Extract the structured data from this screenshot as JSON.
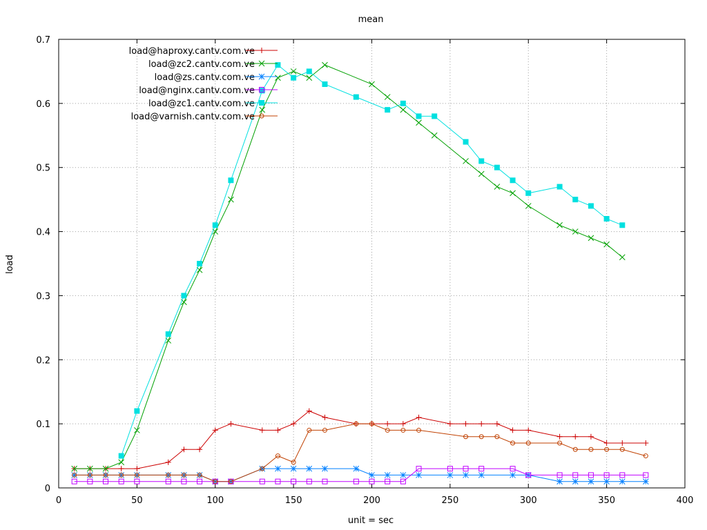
{
  "chart_data": {
    "type": "line",
    "title": "mean",
    "xlabel": "unit = sec",
    "ylabel": "load",
    "xlim": [
      0,
      400
    ],
    "ylim": [
      0,
      0.7
    ],
    "xticks": [
      0,
      50,
      100,
      150,
      200,
      250,
      300,
      350,
      400
    ],
    "yticks": [
      0,
      0.1,
      0.2,
      0.3,
      0.4,
      0.5,
      0.6,
      0.7
    ],
    "xtick_labels": [
      "0",
      "50",
      "100",
      "150",
      "200",
      "250",
      "300",
      "350",
      "400"
    ],
    "ytick_labels": [
      "0",
      "0.1",
      "0.2",
      "0.3",
      "0.4",
      "0.5",
      "0.6",
      "0.7"
    ],
    "grid": true,
    "legend_position": "top-left",
    "series": [
      {
        "name": "load@haproxy.cantv.com.ve",
        "color": "#cc0000",
        "marker": "plus",
        "points": [
          [
            10,
            0.03
          ],
          [
            20,
            0.03
          ],
          [
            30,
            0.03
          ],
          [
            40,
            0.03
          ],
          [
            50,
            0.03
          ],
          [
            70,
            0.04
          ],
          [
            80,
            0.06
          ],
          [
            90,
            0.06
          ],
          [
            100,
            0.09
          ],
          [
            110,
            0.1
          ],
          [
            130,
            0.09
          ],
          [
            140,
            0.09
          ],
          [
            150,
            0.1
          ],
          [
            160,
            0.12
          ],
          [
            170,
            0.11
          ],
          [
            190,
            0.1
          ],
          [
            200,
            0.1
          ],
          [
            210,
            0.1
          ],
          [
            220,
            0.1
          ],
          [
            230,
            0.11
          ],
          [
            250,
            0.1
          ],
          [
            260,
            0.1
          ],
          [
            270,
            0.1
          ],
          [
            280,
            0.1
          ],
          [
            290,
            0.09
          ],
          [
            300,
            0.09
          ],
          [
            320,
            0.08
          ],
          [
            330,
            0.08
          ],
          [
            340,
            0.08
          ],
          [
            350,
            0.07
          ],
          [
            360,
            0.07
          ],
          [
            375,
            0.07
          ]
        ]
      },
      {
        "name": "load@zc2.cantv.com.ve",
        "color": "#00a000",
        "marker": "cross",
        "points": [
          [
            10,
            0.03
          ],
          [
            20,
            0.03
          ],
          [
            30,
            0.03
          ],
          [
            40,
            0.04
          ],
          [
            50,
            0.09
          ],
          [
            70,
            0.23
          ],
          [
            80,
            0.29
          ],
          [
            90,
            0.34
          ],
          [
            100,
            0.4
          ],
          [
            110,
            0.45
          ],
          [
            130,
            0.59
          ],
          [
            140,
            0.64
          ],
          [
            150,
            0.65
          ],
          [
            160,
            0.64
          ],
          [
            170,
            0.66
          ],
          [
            200,
            0.63
          ],
          [
            210,
            0.61
          ],
          [
            220,
            0.59
          ],
          [
            230,
            0.57
          ],
          [
            240,
            0.55
          ],
          [
            260,
            0.51
          ],
          [
            270,
            0.49
          ],
          [
            280,
            0.47
          ],
          [
            290,
            0.46
          ],
          [
            300,
            0.44
          ],
          [
            320,
            0.41
          ],
          [
            330,
            0.4
          ],
          [
            340,
            0.39
          ],
          [
            350,
            0.38
          ],
          [
            360,
            0.36
          ]
        ]
      },
      {
        "name": "load@zs.cantv.com.ve",
        "color": "#0080ff",
        "marker": "star",
        "points": [
          [
            10,
            0.02
          ],
          [
            20,
            0.02
          ],
          [
            30,
            0.02
          ],
          [
            40,
            0.02
          ],
          [
            50,
            0.02
          ],
          [
            70,
            0.02
          ],
          [
            80,
            0.02
          ],
          [
            90,
            0.02
          ],
          [
            100,
            0.01
          ],
          [
            110,
            0.01
          ],
          [
            130,
            0.03
          ],
          [
            140,
            0.03
          ],
          [
            150,
            0.03
          ],
          [
            160,
            0.03
          ],
          [
            170,
            0.03
          ],
          [
            190,
            0.03
          ],
          [
            200,
            0.02
          ],
          [
            210,
            0.02
          ],
          [
            220,
            0.02
          ],
          [
            230,
            0.02
          ],
          [
            250,
            0.02
          ],
          [
            260,
            0.02
          ],
          [
            270,
            0.02
          ],
          [
            290,
            0.02
          ],
          [
            300,
            0.02
          ],
          [
            320,
            0.01
          ],
          [
            330,
            0.01
          ],
          [
            340,
            0.01
          ],
          [
            350,
            0.01
          ],
          [
            360,
            0.01
          ],
          [
            375,
            0.01
          ]
        ]
      },
      {
        "name": "load@nginx.cantv.com.ve",
        "color": "#c000ff",
        "marker": "square-open",
        "points": [
          [
            10,
            0.01
          ],
          [
            20,
            0.01
          ],
          [
            30,
            0.01
          ],
          [
            40,
            0.01
          ],
          [
            50,
            0.01
          ],
          [
            70,
            0.01
          ],
          [
            80,
            0.01
          ],
          [
            90,
            0.01
          ],
          [
            100,
            0.01
          ],
          [
            110,
            0.01
          ],
          [
            130,
            0.01
          ],
          [
            140,
            0.01
          ],
          [
            150,
            0.01
          ],
          [
            160,
            0.01
          ],
          [
            170,
            0.01
          ],
          [
            190,
            0.01
          ],
          [
            200,
            0.01
          ],
          [
            210,
            0.01
          ],
          [
            220,
            0.01
          ],
          [
            230,
            0.03
          ],
          [
            250,
            0.03
          ],
          [
            260,
            0.03
          ],
          [
            270,
            0.03
          ],
          [
            290,
            0.03
          ],
          [
            300,
            0.02
          ],
          [
            320,
            0.02
          ],
          [
            330,
            0.02
          ],
          [
            340,
            0.02
          ],
          [
            350,
            0.02
          ],
          [
            360,
            0.02
          ],
          [
            375,
            0.02
          ]
        ]
      },
      {
        "name": "load@zc1.cantv.com.ve",
        "color": "#00e0e0",
        "marker": "square-filled",
        "points": [
          [
            40,
            0.05
          ],
          [
            50,
            0.12
          ],
          [
            70,
            0.24
          ],
          [
            80,
            0.3
          ],
          [
            90,
            0.35
          ],
          [
            100,
            0.41
          ],
          [
            110,
            0.48
          ],
          [
            130,
            0.62
          ],
          [
            140,
            0.66
          ],
          [
            150,
            0.64
          ],
          [
            160,
            0.65
          ],
          [
            170,
            0.63
          ],
          [
            190,
            0.61
          ],
          [
            210,
            0.59
          ],
          [
            220,
            0.6
          ],
          [
            230,
            0.58
          ],
          [
            240,
            0.58
          ],
          [
            260,
            0.54
          ],
          [
            270,
            0.51
          ],
          [
            280,
            0.5
          ],
          [
            290,
            0.48
          ],
          [
            300,
            0.46
          ],
          [
            320,
            0.47
          ],
          [
            330,
            0.45
          ],
          [
            340,
            0.44
          ],
          [
            350,
            0.42
          ],
          [
            360,
            0.41
          ]
        ]
      },
      {
        "name": "load@varnish.cantv.com.ve",
        "color": "#c04000",
        "marker": "circle-open",
        "points": [
          [
            10,
            0.02
          ],
          [
            20,
            0.02
          ],
          [
            30,
            0.02
          ],
          [
            40,
            0.02
          ],
          [
            50,
            0.02
          ],
          [
            70,
            0.02
          ],
          [
            80,
            0.02
          ],
          [
            90,
            0.02
          ],
          [
            100,
            0.01
          ],
          [
            110,
            0.01
          ],
          [
            130,
            0.03
          ],
          [
            140,
            0.05
          ],
          [
            150,
            0.04
          ],
          [
            160,
            0.09
          ],
          [
            170,
            0.09
          ],
          [
            190,
            0.1
          ],
          [
            200,
            0.1
          ],
          [
            210,
            0.09
          ],
          [
            220,
            0.09
          ],
          [
            230,
            0.09
          ],
          [
            260,
            0.08
          ],
          [
            270,
            0.08
          ],
          [
            280,
            0.08
          ],
          [
            290,
            0.07
          ],
          [
            300,
            0.07
          ],
          [
            320,
            0.07
          ],
          [
            330,
            0.06
          ],
          [
            340,
            0.06
          ],
          [
            350,
            0.06
          ],
          [
            360,
            0.06
          ],
          [
            375,
            0.05
          ]
        ]
      }
    ]
  }
}
